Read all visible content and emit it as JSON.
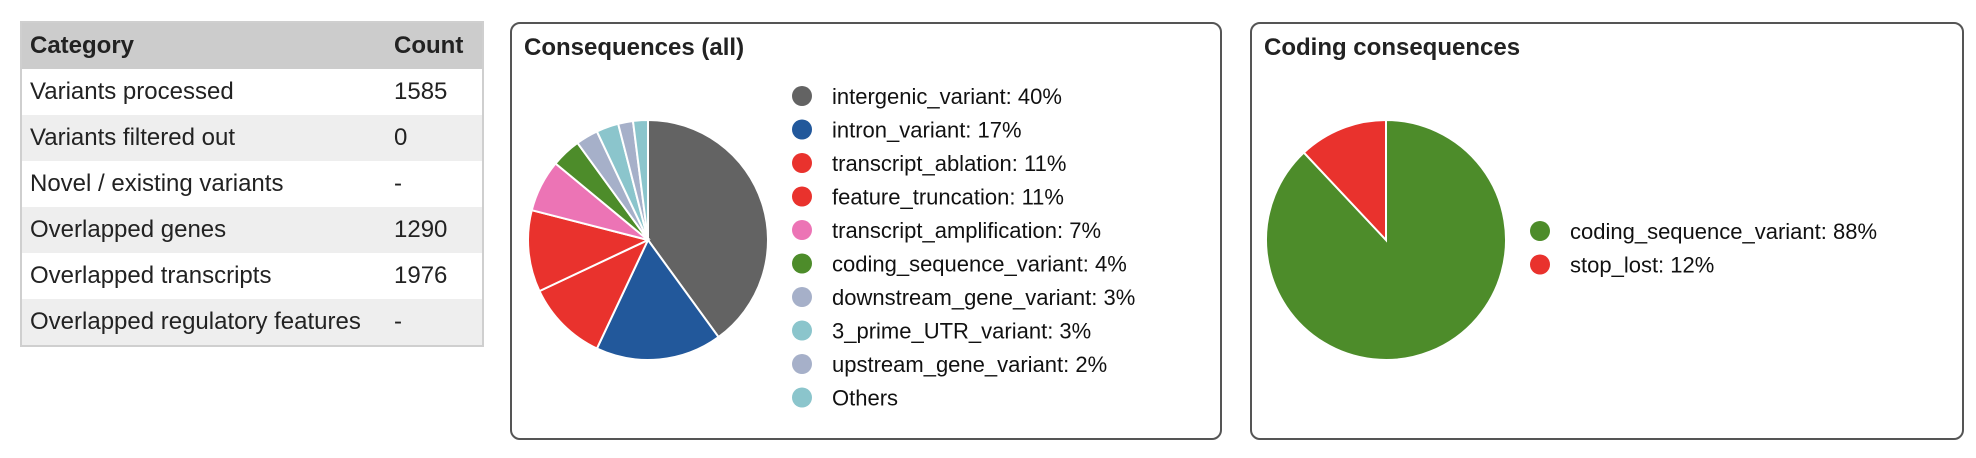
{
  "table": {
    "headers": [
      "Category",
      "Count"
    ],
    "rows": [
      {
        "category": "Variants processed",
        "count": "1585"
      },
      {
        "category": "Variants filtered out",
        "count": "0"
      },
      {
        "category": "Novel / existing variants",
        "count": "-"
      },
      {
        "category": "Overlapped genes",
        "count": "1290"
      },
      {
        "category": "Overlapped transcripts",
        "count": "1976"
      },
      {
        "category": "Overlapped regulatory features",
        "count": "-"
      }
    ]
  },
  "chart_data": [
    {
      "type": "pie",
      "title": "Consequences (all)",
      "legend_position": "right",
      "slices": [
        {
          "label": "intergenic_variant: 40%",
          "value": 40,
          "color": "#636363"
        },
        {
          "label": "intron_variant: 17%",
          "value": 17,
          "color": "#22589b"
        },
        {
          "label": "transcript_ablation: 11%",
          "value": 11,
          "color": "#e9322d"
        },
        {
          "label": "feature_truncation: 11%",
          "value": 11,
          "color": "#e9322d"
        },
        {
          "label": "transcript_amplification: 7%",
          "value": 7,
          "color": "#ec74b5"
        },
        {
          "label": "coding_sequence_variant: 4%",
          "value": 4,
          "color": "#4d8c2a"
        },
        {
          "label": "downstream_gene_variant: 3%",
          "value": 3,
          "color": "#a6b0c9"
        },
        {
          "label": "3_prime_UTR_variant: 3%",
          "value": 3,
          "color": "#8bc5cc"
        },
        {
          "label": "upstream_gene_variant: 2%",
          "value": 2,
          "color": "#a6b0c9"
        },
        {
          "label": "Others",
          "value": 2,
          "color": "#8bc5cc"
        }
      ]
    },
    {
      "type": "pie",
      "title": "Coding consequences",
      "legend_position": "right",
      "slices": [
        {
          "label": "coding_sequence_variant: 88%",
          "value": 88,
          "color": "#4d8c2a"
        },
        {
          "label": "stop_lost: 12%",
          "value": 12,
          "color": "#e9322d"
        }
      ]
    }
  ]
}
